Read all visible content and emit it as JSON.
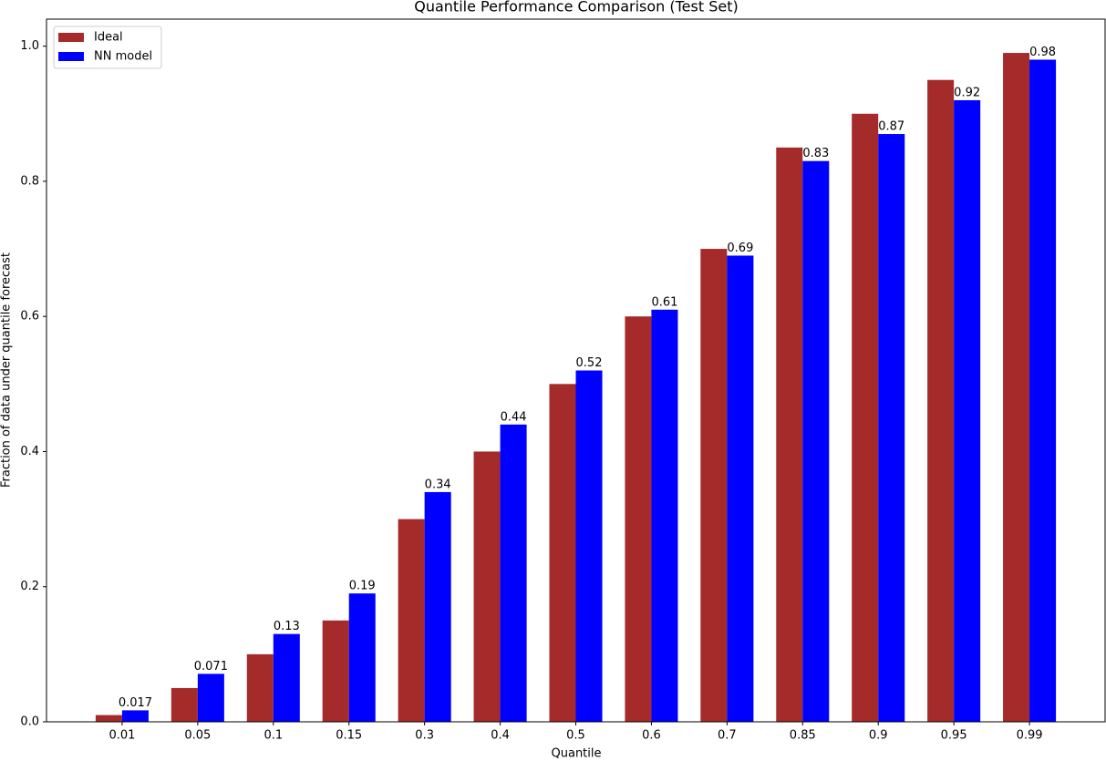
{
  "chart_data": {
    "type": "bar",
    "title": "Quantile Performance Comparison (Test Set)",
    "x_label": "Quantile",
    "y_label": "Fraction of data under quantile forecast",
    "categories": [
      "0.01",
      "0.05",
      "0.1",
      "0.15",
      "0.3",
      "0.4",
      "0.5",
      "0.6",
      "0.7",
      "0.85",
      "0.9",
      "0.95",
      "0.99"
    ],
    "series": [
      {
        "name": "Ideal",
        "color": "#a52a2a",
        "values": [
          0.01,
          0.05,
          0.1,
          0.15,
          0.3,
          0.4,
          0.5,
          0.6,
          0.7,
          0.85,
          0.9,
          0.95,
          0.99
        ]
      },
      {
        "name": "NN model",
        "color": "#0000ff",
        "values": [
          0.017,
          0.071,
          0.13,
          0.19,
          0.34,
          0.44,
          0.52,
          0.61,
          0.69,
          0.83,
          0.87,
          0.92,
          0.98
        ],
        "show_labels": true
      }
    ],
    "ylim": [
      0,
      1.04
    ],
    "yticks": [
      {
        "value": 0,
        "label": "0.0"
      },
      0.2,
      0.4,
      0.6,
      0.8,
      {
        "value": 1,
        "label": "1.0"
      }
    ],
    "grid": false,
    "legend": "upper-left"
  }
}
